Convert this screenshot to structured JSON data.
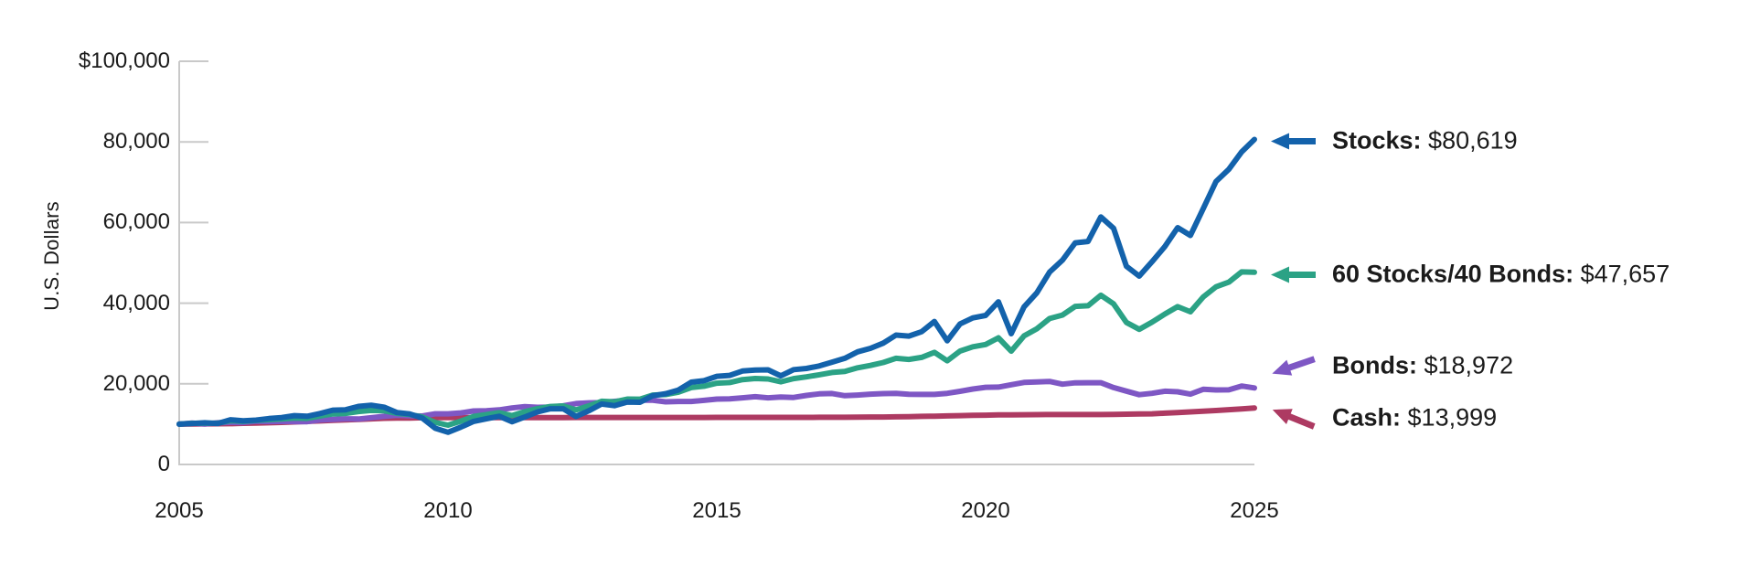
{
  "page": {
    "background": "#ffffff"
  },
  "chart": {
    "y_axis_title": "U.S. Dollars",
    "y_ticks": [
      {
        "label": "$100,000",
        "value": 100000
      },
      {
        "label": "80,000",
        "value": 80000
      },
      {
        "label": "60,000",
        "value": 60000
      },
      {
        "label": "40,000",
        "value": 40000
      },
      {
        "label": "20,000",
        "value": 20000
      },
      {
        "label": "0",
        "value": 0
      }
    ],
    "x_ticks": [
      "2005",
      "2010",
      "2015",
      "2020",
      "2025"
    ],
    "axis_color": "#c9c9c9",
    "annotations": [
      {
        "name": "stocks",
        "label": "Stocks:",
        "value": "$80,619",
        "color": "#1362ab",
        "arrow_dir": "left"
      },
      {
        "name": "60-stocks-40-bonds",
        "label": "60 Stocks/40 Bonds:",
        "value": "$47,657",
        "color": "#2ba285",
        "arrow_dir": "left"
      },
      {
        "name": "bonds",
        "label": "Bonds:",
        "value": "$18,972",
        "color": "#7e57c4",
        "arrow_dir": "down-left"
      },
      {
        "name": "cash",
        "label": "Cash:",
        "value": "$13,999",
        "color": "#ad3a62",
        "arrow_dir": "up-left"
      }
    ]
  },
  "chart_data": {
    "type": "line",
    "title": "",
    "xlabel": "",
    "ylabel": "U.S. Dollars",
    "ylim": [
      0,
      100000
    ],
    "x_axis_labels": [
      "2005",
      "2010",
      "2015",
      "2020",
      "2025"
    ],
    "grid": false,
    "legend_position": "right-annotations",
    "note": "Growth of $10,000; points are evenly spaced quarterly samples across the x-axis from first to last tick.",
    "series": [
      {
        "name": "Stocks",
        "color": "#1362ab",
        "final_value": 80619,
        "values": [
          10000,
          10170,
          10340,
          10150,
          11080,
          10850,
          11000,
          11390,
          11630,
          12120,
          11950,
          12630,
          13480,
          13560,
          14410,
          14700,
          14220,
          12880,
          12530,
          11480,
          8970,
          7980,
          9250,
          10690,
          11330,
          11940,
          10580,
          11770,
          13040,
          13810,
          13820,
          11900,
          13310,
          14980,
          14570,
          15480,
          15420,
          17050,
          17550,
          18460,
          20400,
          20770,
          21850,
          22090,
          23180,
          23410,
          23480,
          21970,
          23520,
          23820,
          24420,
          25370,
          26330,
          27940,
          28800,
          30100,
          32090,
          31840,
          32930,
          35460,
          30670,
          34850,
          36350,
          36970,
          40330,
          32430,
          39080,
          42560,
          47710,
          50660,
          54970,
          55300,
          61380,
          58560,
          49130,
          46720,
          50270,
          54040,
          58740,
          56800,
          63450,
          70180,
          73190,
          77510,
          80619
        ]
      },
      {
        "name": "60 Stocks/40 Bonds",
        "color": "#2ba285",
        "final_value": 47657,
        "values": [
          10000,
          10210,
          10220,
          10230,
          10840,
          10680,
          10900,
          11100,
          11270,
          11530,
          11430,
          11990,
          12530,
          12650,
          13100,
          13410,
          13300,
          12670,
          12410,
          11760,
          10430,
          9750,
          10750,
          11910,
          12350,
          12840,
          12140,
          13080,
          13860,
          14370,
          14510,
          13520,
          14540,
          15660,
          15530,
          16210,
          16190,
          17210,
          17350,
          17930,
          19060,
          19400,
          20160,
          20310,
          21050,
          21310,
          21210,
          20490,
          21300,
          21730,
          22240,
          22810,
          23050,
          23970,
          24550,
          25290,
          26330,
          26050,
          26560,
          27790,
          25720,
          28110,
          29190,
          29750,
          31400,
          28100,
          31880,
          33660,
          36200,
          37050,
          39210,
          39370,
          41970,
          39820,
          35220,
          33510,
          35290,
          37300,
          39130,
          37860,
          41550,
          44060,
          45210,
          47750,
          47657
        ]
      },
      {
        "name": "Bonds",
        "color": "#7e57c4",
        "final_value": 18972,
        "values": [
          10000,
          10270,
          10020,
          10340,
          10440,
          10390,
          10700,
          10630,
          10690,
          10630,
          10620,
          11020,
          11150,
          11320,
          11260,
          11580,
          11930,
          12190,
          12070,
          12010,
          12560,
          12570,
          12800,
          13270,
          13300,
          13540,
          14010,
          14360,
          14170,
          14230,
          14560,
          15110,
          15280,
          15330,
          15650,
          15900,
          15930,
          15910,
          15540,
          15630,
          15620,
          15900,
          16220,
          16250,
          16540,
          16800,
          16520,
          16720,
          16620,
          17120,
          17500,
          17590,
          17060,
          17200,
          17440,
          17580,
          17650,
          17390,
          17360,
          17360,
          17640,
          18150,
          18710,
          19140,
          19180,
          19770,
          20340,
          20460,
          20600,
          19900,
          20260,
          20280,
          20280,
          19080,
          18180,
          17310,
          17640,
          18170,
          18020,
          17440,
          18630,
          18480,
          18500,
          19460,
          18972
        ]
      },
      {
        "name": "Cash",
        "color": "#ad3a62",
        "final_value": 13999,
        "values": [
          10000,
          10030,
          10060,
          10090,
          10120,
          10200,
          10270,
          10350,
          10420,
          10550,
          10670,
          10800,
          10920,
          11050,
          11180,
          11310,
          11440,
          11490,
          11530,
          11580,
          11620,
          11620,
          11630,
          11630,
          11630,
          11630,
          11640,
          11640,
          11640,
          11640,
          11640,
          11650,
          11650,
          11650,
          11650,
          11660,
          11660,
          11660,
          11660,
          11660,
          11660,
          11660,
          11670,
          11670,
          11670,
          11670,
          11670,
          11670,
          11670,
          11680,
          11690,
          11700,
          11710,
          11730,
          11760,
          11780,
          11810,
          11870,
          11920,
          11980,
          12040,
          12100,
          12170,
          12230,
          12300,
          12320,
          12330,
          12350,
          12370,
          12370,
          12370,
          12380,
          12380,
          12430,
          12470,
          12520,
          12570,
          12720,
          12880,
          13030,
          13190,
          13390,
          13590,
          13790,
          13999
        ]
      }
    ]
  }
}
